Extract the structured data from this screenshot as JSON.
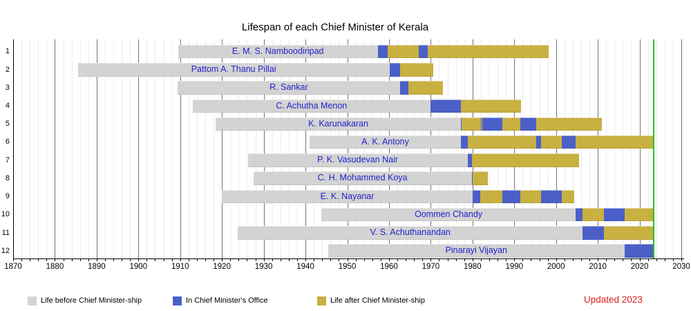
{
  "updated_note": "Updated 2023",
  "colors": {
    "before": "#d3d3d3",
    "office": "#4a60c8",
    "after": "#c8b041",
    "now_line": "#1dc51d",
    "name_text": "#2222cc",
    "updated_text": "#dd1f1f",
    "grid_minor": "#ececec",
    "grid_major": "#747474",
    "axis": "#000000"
  },
  "legend": [
    {
      "key": "before",
      "label": "Life before Chief Minister-ship",
      "color": "#d3d3d3"
    },
    {
      "key": "office",
      "label": "In Chief Minister's Office",
      "color": "#4a60c8"
    },
    {
      "key": "after",
      "label": "Life after Chief Minister-ship",
      "color": "#c8b041"
    }
  ],
  "chart_data": {
    "type": "gantt",
    "title": "Lifespan of each Chief Minister of Kerala",
    "x_axis": {
      "min": 1870,
      "max": 2030,
      "major_tick_step": 10,
      "minor_tick_step": 2,
      "tick_labels": [
        1870,
        1880,
        1890,
        1900,
        1910,
        1920,
        1930,
        1940,
        1950,
        1960,
        1970,
        1980,
        1990,
        2000,
        2010,
        2020,
        2030
      ]
    },
    "now_line_year": 2023.3,
    "rows": [
      {
        "index": 1,
        "name": "E. M. S. Namboodiripad",
        "segments": [
          {
            "type": "before",
            "start": 1909.5,
            "end": 1957.3
          },
          {
            "type": "office",
            "start": 1957.3,
            "end": 1959.6
          },
          {
            "type": "after",
            "start": 1959.6,
            "end": 1967.2
          },
          {
            "type": "office",
            "start": 1967.2,
            "end": 1969.3
          },
          {
            "type": "after",
            "start": 1969.3,
            "end": 1998.2
          }
        ]
      },
      {
        "index": 2,
        "name": "Pattom A. Thanu Pillai",
        "segments": [
          {
            "type": "before",
            "start": 1885.5,
            "end": 1960.1
          },
          {
            "type": "office",
            "start": 1960.1,
            "end": 1962.7
          },
          {
            "type": "after",
            "start": 1962.7,
            "end": 1970.6
          }
        ]
      },
      {
        "index": 3,
        "name": "R. Sankar",
        "segments": [
          {
            "type": "before",
            "start": 1909.3,
            "end": 1962.7
          },
          {
            "type": "office",
            "start": 1962.7,
            "end": 1964.7
          },
          {
            "type": "after",
            "start": 1964.7,
            "end": 1972.9
          }
        ]
      },
      {
        "index": 4,
        "name": "C. Achutha Menon",
        "segments": [
          {
            "type": "before",
            "start": 1913.0,
            "end": 1969.9
          },
          {
            "type": "office",
            "start": 1969.9,
            "end": 1977.2
          },
          {
            "type": "after",
            "start": 1977.2,
            "end": 1991.6
          }
        ]
      },
      {
        "index": 5,
        "name": "K. Karunakaran",
        "segments": [
          {
            "type": "before",
            "start": 1918.5,
            "end": 1977.2
          },
          {
            "type": "office",
            "start": 1977.2,
            "end": 1977.35
          },
          {
            "type": "after",
            "start": 1977.35,
            "end": 1981.95
          },
          {
            "type": "office",
            "start": 1981.95,
            "end": 1982.2
          },
          {
            "type": "after",
            "start": 1982.2,
            "end": 1982.4
          },
          {
            "type": "office",
            "start": 1982.4,
            "end": 1987.2
          },
          {
            "type": "after",
            "start": 1987.2,
            "end": 1991.5
          },
          {
            "type": "office",
            "start": 1991.5,
            "end": 1995.2
          },
          {
            "type": "after",
            "start": 1995.2,
            "end": 2010.9
          }
        ]
      },
      {
        "index": 6,
        "name": "A. K. Antony",
        "segments": [
          {
            "type": "before",
            "start": 1940.9,
            "end": 1977.3
          },
          {
            "type": "office",
            "start": 1977.3,
            "end": 1978.8
          },
          {
            "type": "after",
            "start": 1978.8,
            "end": 1995.2
          },
          {
            "type": "office",
            "start": 1995.2,
            "end": 1996.4
          },
          {
            "type": "after",
            "start": 1996.4,
            "end": 2001.4
          },
          {
            "type": "office",
            "start": 2001.4,
            "end": 2004.7
          },
          {
            "type": "after",
            "start": 2004.7,
            "end": 2023.3
          }
        ]
      },
      {
        "index": 7,
        "name": "P. K. Vasudevan Nair",
        "segments": [
          {
            "type": "before",
            "start": 1926.2,
            "end": 1978.8
          },
          {
            "type": "office",
            "start": 1978.8,
            "end": 1979.8
          },
          {
            "type": "after",
            "start": 1979.8,
            "end": 2005.5
          }
        ]
      },
      {
        "index": 8,
        "name": "C. H. Mohammed Koya",
        "segments": [
          {
            "type": "before",
            "start": 1927.5,
            "end": 1979.8
          },
          {
            "type": "office",
            "start": 1979.8,
            "end": 1980.0
          },
          {
            "type": "after",
            "start": 1980.0,
            "end": 1983.7
          }
        ]
      },
      {
        "index": 9,
        "name": "E. K. Nayanar",
        "segments": [
          {
            "type": "before",
            "start": 1919.9,
            "end": 1980.1
          },
          {
            "type": "office",
            "start": 1980.1,
            "end": 1981.8
          },
          {
            "type": "after",
            "start": 1981.8,
            "end": 1987.2
          },
          {
            "type": "office",
            "start": 1987.2,
            "end": 1991.5
          },
          {
            "type": "after",
            "start": 1991.5,
            "end": 1996.4
          },
          {
            "type": "office",
            "start": 1996.4,
            "end": 2001.4
          },
          {
            "type": "after",
            "start": 2001.4,
            "end": 2004.4
          }
        ]
      },
      {
        "index": 10,
        "name": "Oommen Chandy",
        "segments": [
          {
            "type": "before",
            "start": 1943.8,
            "end": 2004.7
          },
          {
            "type": "office",
            "start": 2004.7,
            "end": 2006.4
          },
          {
            "type": "after",
            "start": 2006.4,
            "end": 2011.4
          },
          {
            "type": "office",
            "start": 2011.4,
            "end": 2016.4
          },
          {
            "type": "after",
            "start": 2016.4,
            "end": 2023.3
          }
        ]
      },
      {
        "index": 11,
        "name": "V. S. Achuthanandan",
        "segments": [
          {
            "type": "before",
            "start": 1923.8,
            "end": 2006.4
          },
          {
            "type": "office",
            "start": 2006.4,
            "end": 2011.4
          },
          {
            "type": "after",
            "start": 2011.4,
            "end": 2023.3
          }
        ]
      },
      {
        "index": 12,
        "name": "Pinarayi Vijayan",
        "segments": [
          {
            "type": "before",
            "start": 1945.4,
            "end": 2016.4
          },
          {
            "type": "office",
            "start": 2016.4,
            "end": 2023.3
          }
        ]
      }
    ]
  }
}
